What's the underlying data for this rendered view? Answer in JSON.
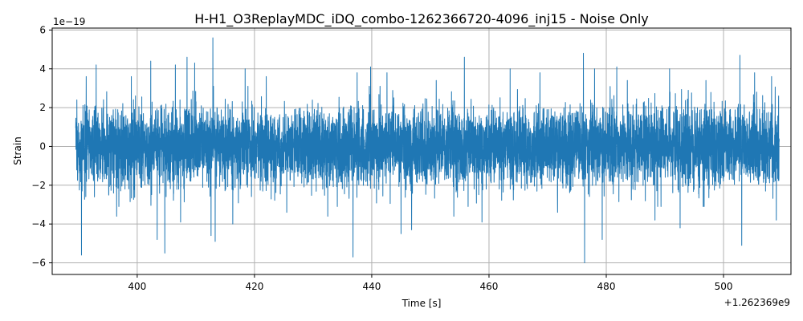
{
  "chart_data": {
    "type": "line",
    "title": "H-H1_O3ReplayMDC_iDQ_combo-1262366720-4096_inj15 - Noise Only",
    "xlabel": "Time [s]",
    "ylabel": "Strain",
    "x_offset_label": "+1.262369e9",
    "y_scale_label": "1e−19",
    "xlim": [
      385.5,
      511.5
    ],
    "ylim": [
      -6.6,
      6.1
    ],
    "x_ticks": [
      400,
      420,
      440,
      460,
      480,
      500
    ],
    "x_tick_labels": [
      "400",
      "420",
      "440",
      "460",
      "480",
      "500"
    ],
    "y_ticks": [
      -6,
      -4,
      -2,
      0,
      2,
      4,
      6
    ],
    "y_tick_labels": [
      "−6",
      "−4",
      "−2",
      "0",
      "2",
      "4",
      "6"
    ],
    "grid": true,
    "color": "#1f77b4",
    "series": [
      {
        "x_start": 389.5,
        "x_end": 509.5,
        "peaks": [
          {
            "x": 389.7,
            "y": 2.4
          },
          {
            "x": 390.5,
            "y": -5.6
          },
          {
            "x": 391.3,
            "y": 3.6
          },
          {
            "x": 393.0,
            "y": 4.2
          },
          {
            "x": 396.5,
            "y": -3.6
          },
          {
            "x": 399.0,
            "y": 3.6
          },
          {
            "x": 402.3,
            "y": 4.4
          },
          {
            "x": 403.4,
            "y": -4.8
          },
          {
            "x": 404.7,
            "y": -5.5
          },
          {
            "x": 406.5,
            "y": 4.2
          },
          {
            "x": 407.4,
            "y": -3.9
          },
          {
            "x": 408.5,
            "y": 4.6
          },
          {
            "x": 409.8,
            "y": 4.3
          },
          {
            "x": 412.6,
            "y": -4.6
          },
          {
            "x": 412.9,
            "y": 5.6
          },
          {
            "x": 413.3,
            "y": -4.9
          },
          {
            "x": 416.3,
            "y": -4.0
          },
          {
            "x": 418.4,
            "y": 4.0
          },
          {
            "x": 422.0,
            "y": 3.6
          },
          {
            "x": 425.5,
            "y": -3.4
          },
          {
            "x": 430.0,
            "y": -0.8
          },
          {
            "x": 432.5,
            "y": -3.6
          },
          {
            "x": 436.8,
            "y": -5.7
          },
          {
            "x": 437.5,
            "y": 3.8
          },
          {
            "x": 439.8,
            "y": 4.1
          },
          {
            "x": 442.6,
            "y": 3.8
          },
          {
            "x": 445.0,
            "y": -4.5
          },
          {
            "x": 446.8,
            "y": -4.3
          },
          {
            "x": 451.0,
            "y": 3.4
          },
          {
            "x": 454.0,
            "y": -3.6
          },
          {
            "x": 455.8,
            "y": 4.6
          },
          {
            "x": 458.8,
            "y": -3.9
          },
          {
            "x": 463.6,
            "y": 4.0
          },
          {
            "x": 468.7,
            "y": 3.8
          },
          {
            "x": 471.7,
            "y": -3.4
          },
          {
            "x": 476.1,
            "y": 4.8
          },
          {
            "x": 476.3,
            "y": -6.0
          },
          {
            "x": 478.0,
            "y": 4.0
          },
          {
            "x": 479.3,
            "y": -4.8
          },
          {
            "x": 481.8,
            "y": 4.1
          },
          {
            "x": 483.6,
            "y": 3.4
          },
          {
            "x": 488.3,
            "y": -3.8
          },
          {
            "x": 490.8,
            "y": 4.0
          },
          {
            "x": 492.6,
            "y": -4.2
          },
          {
            "x": 497.0,
            "y": 3.4
          },
          {
            "x": 502.8,
            "y": 4.7
          },
          {
            "x": 503.1,
            "y": -5.1
          },
          {
            "x": 505.3,
            "y": 3.8
          },
          {
            "x": 508.2,
            "y": 3.6
          },
          {
            "x": 509.0,
            "y": -3.8
          },
          {
            "x": 509.4,
            "y": 2.6
          }
        ]
      }
    ]
  }
}
